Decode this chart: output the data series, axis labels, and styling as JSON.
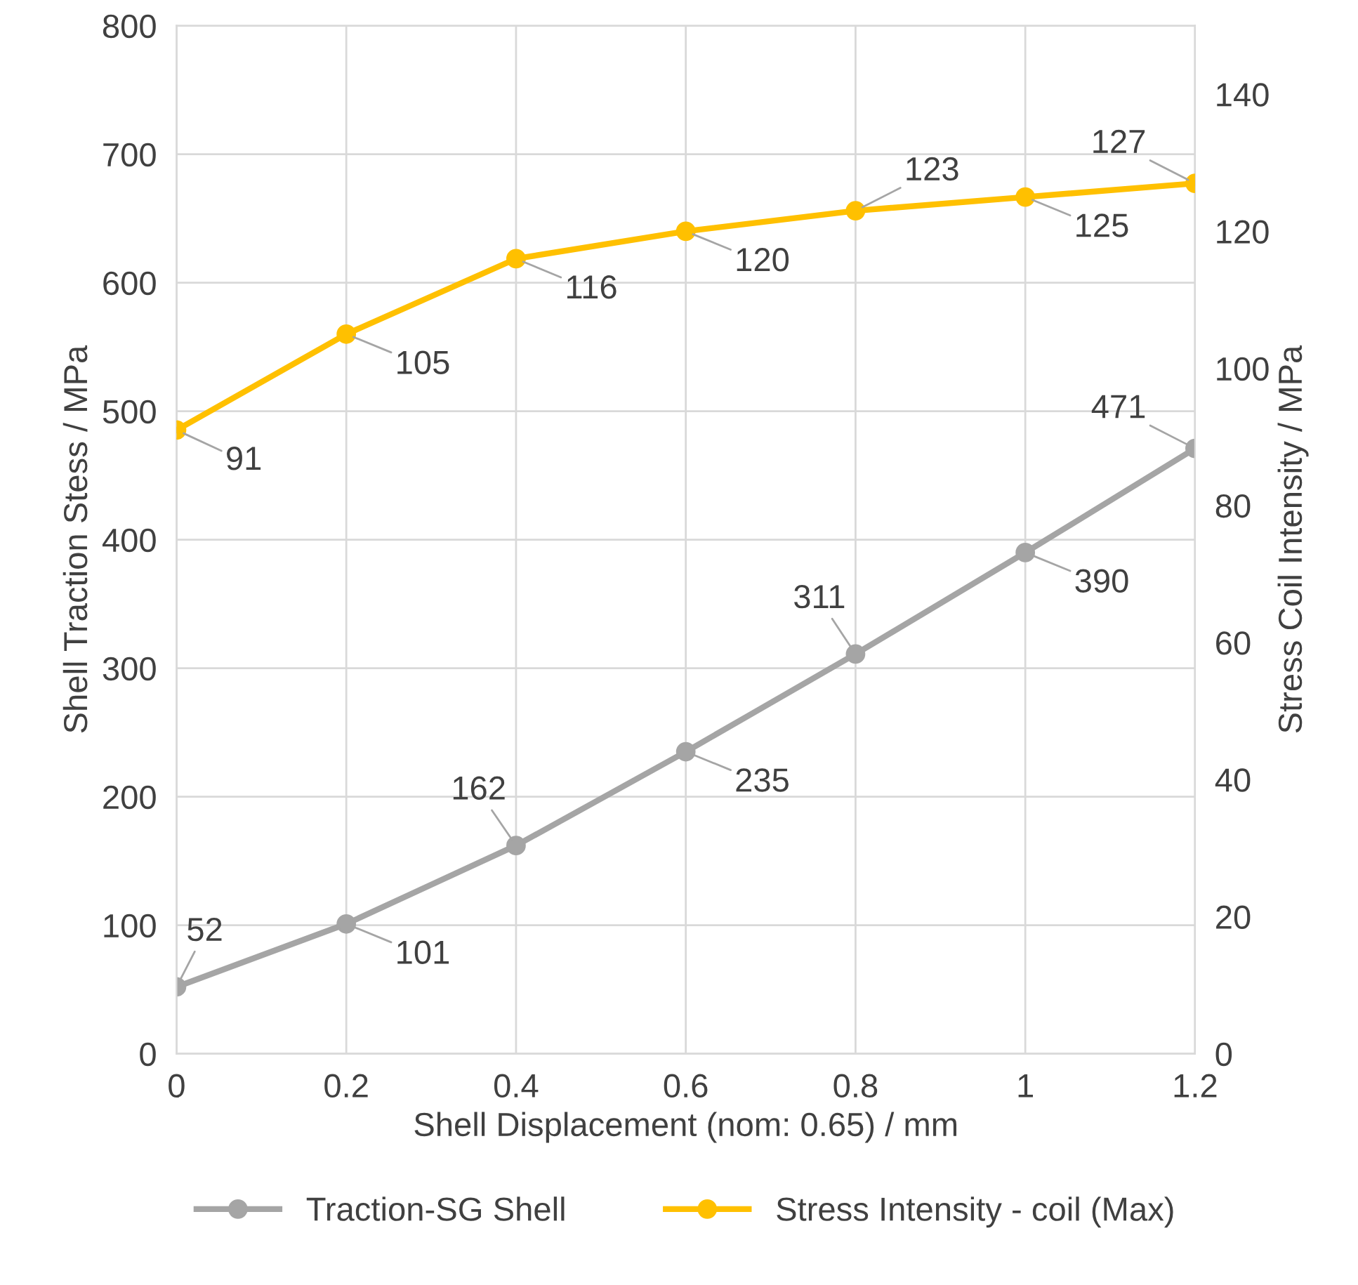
{
  "chart_data": {
    "type": "line",
    "xlabel": "Shell Displacement (nom: 0.65) / mm",
    "ylabel": "Shell Traction Stess / MPa",
    "y2label": "Stress Coil Intensity / MPa",
    "x": [
      0,
      0.2,
      0.4,
      0.6,
      0.8,
      1,
      1.2
    ],
    "series": [
      {
        "name": "Traction-SG Shell",
        "color": "#a5a5a5",
        "values": [
          52,
          101,
          162,
          235,
          311,
          390,
          471
        ]
      },
      {
        "name": "Stress Intensity - coil (Max)",
        "color": "#ffc000",
        "axis": "y2",
        "values": [
          91,
          105,
          116,
          120,
          123,
          125,
          127
        ]
      }
    ],
    "xlim": [
      0,
      1.2
    ],
    "xticks": [
      0,
      0.2,
      0.4,
      0.6,
      0.8,
      1,
      1.2
    ],
    "ylim": [
      0,
      800
    ],
    "yticks": [
      0,
      100,
      200,
      300,
      400,
      500,
      600,
      700,
      800
    ],
    "y2lim": [
      0,
      150
    ],
    "y2ticks": [
      0,
      20,
      40,
      60,
      80,
      100,
      120,
      140
    ],
    "data_labels": true,
    "grid": true,
    "legend": "bottom",
    "marker": "circle",
    "line_style": "solid"
  }
}
